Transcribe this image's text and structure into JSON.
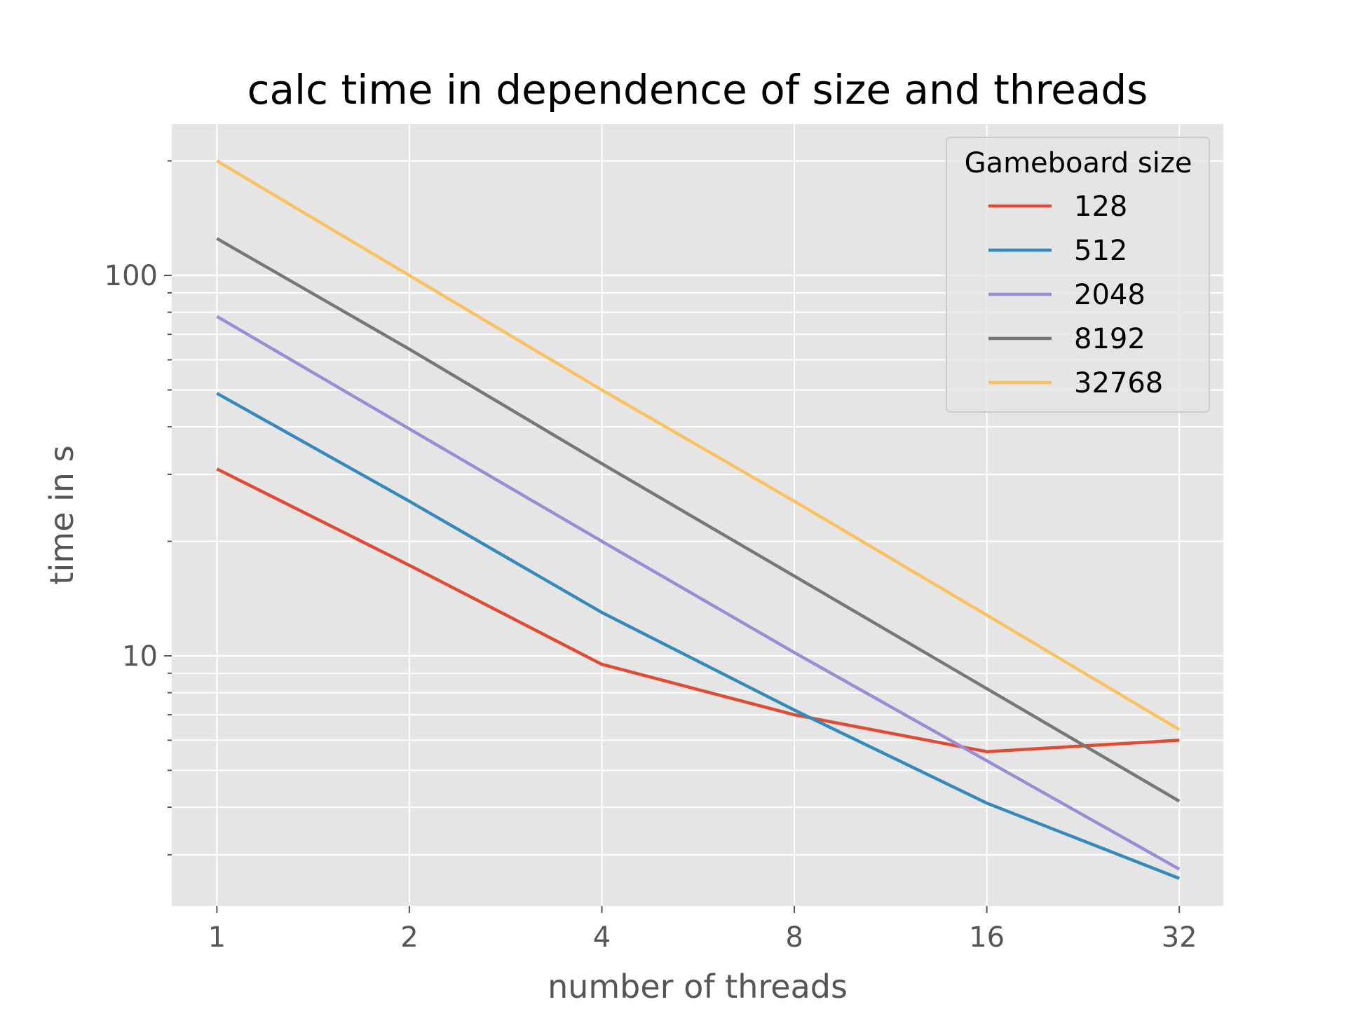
{
  "chart_data": {
    "type": "line",
    "title": "calc time in dependence of size and threads",
    "xlabel": "number of threads",
    "ylabel": "time in s",
    "x": [
      1,
      2,
      4,
      8,
      16,
      32
    ],
    "x_scale": "log2",
    "y_scale": "log10",
    "xlim": [
      0.85,
      37.5
    ],
    "ylim": [
      2.2,
      250
    ],
    "x_ticks": [
      "1",
      "2",
      "4",
      "8",
      "16",
      "32"
    ],
    "y_ticks": [
      {
        "value": 10,
        "label": "10"
      },
      {
        "value": 100,
        "label": "100"
      }
    ],
    "y_minor_ticks": [
      3,
      4,
      5,
      6,
      7,
      8,
      9,
      20,
      30,
      40,
      50,
      60,
      70,
      80,
      90,
      200
    ],
    "grid": true,
    "legend": {
      "title": "Gameboard size",
      "placement": "top-right"
    },
    "series": [
      {
        "name": "128",
        "color": "#E24A33",
        "values": [
          31,
          17.3,
          9.5,
          7.0,
          5.6,
          6.0
        ]
      },
      {
        "name": "512",
        "color": "#348ABD",
        "values": [
          49,
          25.5,
          13,
          7.2,
          4.1,
          2.6
        ]
      },
      {
        "name": "2048",
        "color": "#988ED5",
        "values": [
          78,
          39.5,
          20,
          10.2,
          5.3,
          2.75
        ]
      },
      {
        "name": "8192",
        "color": "#777777",
        "values": [
          125,
          64,
          32,
          16.2,
          8.2,
          4.15
        ]
      },
      {
        "name": "32768",
        "color": "#FBC15E",
        "values": [
          200,
          100,
          50,
          25.5,
          12.8,
          6.4
        ]
      }
    ]
  }
}
